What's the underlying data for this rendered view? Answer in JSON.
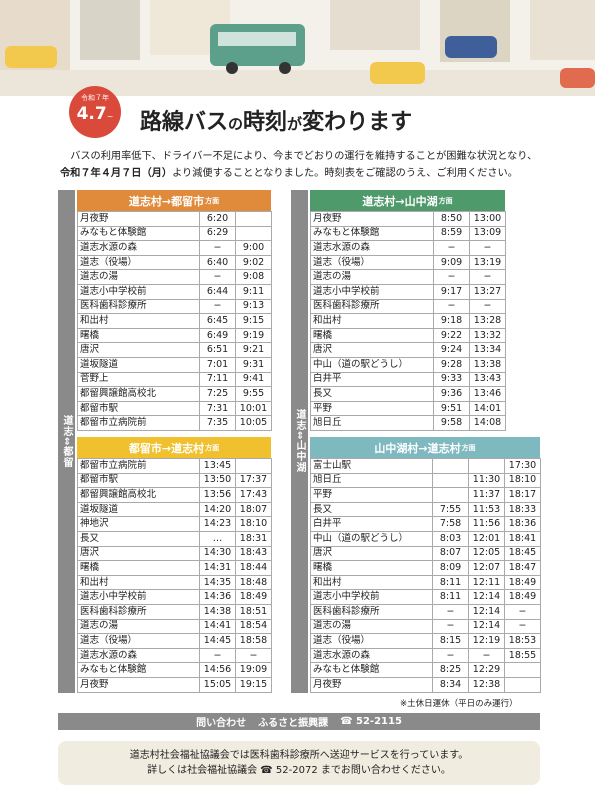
{
  "badge": {
    "era": "令和７年",
    "date": "4.7",
    "tilde": "~"
  },
  "title": {
    "segments": [
      "路線バス",
      "の",
      "時刻",
      "が",
      "変",
      "わります"
    ]
  },
  "intro": {
    "lead": "バスの利用率低下、ドライバー不足により、今までどおりの運行を維持することが困難な状況となり、",
    "date": "令和７年４月７日（月）",
    "rest": "より減便することとなりました。時刻表をご確認のうえ、ご利用ください。"
  },
  "side_labels": [
    "道志⇔都留",
    "道志⇔山中湖"
  ],
  "tables": [
    {
      "header": {
        "main": "道志村→都留市",
        "suffix": "方面"
      },
      "rows": [
        [
          "月夜野",
          "6:20",
          null
        ],
        [
          "みなもと体験館",
          "6:29",
          null
        ],
        [
          "道志水源の森",
          "−",
          "9:00"
        ],
        [
          "道志（役場）",
          "6:40",
          "9:02"
        ],
        [
          "道志の湯",
          "−",
          "9:08"
        ],
        [
          "道志小中学校前",
          "6:44",
          "9:11"
        ],
        [
          "医科歯科診療所",
          "−",
          "9:13"
        ],
        [
          "和出村",
          "6:45",
          "9:15"
        ],
        [
          "曙橋",
          "6:49",
          "9:19"
        ],
        [
          "唐沢",
          "6:51",
          "9:21"
        ],
        [
          "道坂隧道",
          "7:01",
          "9:31"
        ],
        [
          "菅野上",
          "7:11",
          "9:41"
        ],
        [
          "都留興譲館高校北",
          "7:25",
          "9:55"
        ],
        [
          "都留市駅",
          "7:31",
          "10:01"
        ],
        [
          "都留市立病院前",
          "7:35",
          "10:05"
        ]
      ]
    },
    {
      "header": {
        "main": "都留市→道志村",
        "suffix": "方面"
      },
      "rows": [
        [
          "都留市立病院前",
          "13:45",
          null
        ],
        [
          "都留市駅",
          "13:50",
          "17:37"
        ],
        [
          "都留興譲館高校北",
          "13:56",
          "17:43"
        ],
        [
          "道坂隧道",
          "14:20",
          "18:07"
        ],
        [
          "神地沢",
          "14:23",
          "18:10"
        ],
        [
          "長又",
          "…",
          "18:31"
        ],
        [
          "唐沢",
          "14:30",
          "18:43"
        ],
        [
          "曙橋",
          "14:31",
          "18:44"
        ],
        [
          "和出村",
          "14:35",
          "18:48"
        ],
        [
          "道志小中学校前",
          "14:36",
          "18:49"
        ],
        [
          "医科歯科診療所",
          "14:38",
          "18:51"
        ],
        [
          "道志の湯",
          "14:41",
          "18:54"
        ],
        [
          "道志（役場）",
          "14:45",
          "18:58"
        ],
        [
          "道志水源の森",
          "−",
          "−"
        ],
        [
          "みなもと体験館",
          "14:56",
          "19:09"
        ],
        [
          "月夜野",
          "15:05",
          "19:15"
        ]
      ]
    },
    {
      "header": {
        "main": "道志村→山中湖",
        "suffix": "方面"
      },
      "rows": [
        [
          "月夜野",
          "8:50",
          "13:00"
        ],
        [
          "みなもと体験館",
          "8:59",
          "13:09"
        ],
        [
          "道志水源の森",
          "−",
          "−"
        ],
        [
          "道志（役場）",
          "9:09",
          "13:19"
        ],
        [
          "道志の湯",
          "−",
          "−"
        ],
        [
          "道志小中学校前",
          "9:17",
          "13:27"
        ],
        [
          "医科歯科診療所",
          "−",
          "−"
        ],
        [
          "和出村",
          "9:18",
          "13:28"
        ],
        [
          "曙橋",
          "9:22",
          "13:32"
        ],
        [
          "唐沢",
          "9:24",
          "13:34"
        ],
        [
          "中山（道の駅どうし）",
          "9:28",
          "13:38"
        ],
        [
          "白井平",
          "9:33",
          "13:43"
        ],
        [
          "長又",
          "9:36",
          "13:46"
        ],
        [
          "平野",
          "9:51",
          "14:01"
        ],
        [
          "旭日丘",
          "9:58",
          "14:08"
        ]
      ]
    },
    {
      "header": {
        "main": "山中湖村→道志村",
        "suffix": "方面"
      },
      "rows": [
        [
          "富士山駅",
          null,
          null,
          "17:30"
        ],
        [
          "旭日丘",
          null,
          "11:30",
          "18:10"
        ],
        [
          "平野",
          null,
          "11:37",
          "18:17"
        ],
        [
          "長又",
          "7:55",
          "11:53",
          "18:33"
        ],
        [
          "白井平",
          "7:58",
          "11:56",
          "18:36"
        ],
        [
          "中山（道の駅どうし）",
          "8:03",
          "12:01",
          "18:41"
        ],
        [
          "唐沢",
          "8:07",
          "12:05",
          "18:45"
        ],
        [
          "曙橋",
          "8:09",
          "12:07",
          "18:47"
        ],
        [
          "和出村",
          "8:11",
          "12:11",
          "18:49"
        ],
        [
          "道志小中学校前",
          "8:11",
          "12:14",
          "18:49"
        ],
        [
          "医科歯科診療所",
          "−",
          "12:14",
          "−"
        ],
        [
          "道志の湯",
          "−",
          "12:14",
          "−"
        ],
        [
          "道志（役場）",
          "8:15",
          "12:19",
          "18:53"
        ],
        [
          "道志水源の森",
          "−",
          "−",
          "18:55"
        ],
        [
          "みなもと体験館",
          "8:25",
          "12:29",
          null
        ],
        [
          "月夜野",
          "8:34",
          "12:38",
          null
        ]
      ]
    }
  ],
  "note": "※土休日運休（平日のみ運行）",
  "contact": {
    "label": "問い合わせ",
    "dept": "ふるさと振興課",
    "phone": "☎ 52-2115"
  },
  "footer": {
    "lines": [
      "道志村社会福祉協議会では医科歯科診療所へ送迎サービスを行っています。",
      "詳しくは社会福祉協議会 ☎ 52-2072 までお問い合わせください。"
    ]
  }
}
